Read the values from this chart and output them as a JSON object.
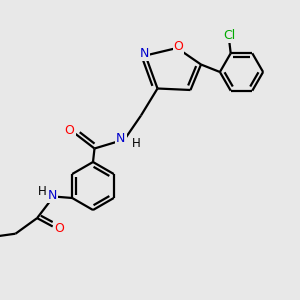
{
  "bg_color": "#e8e8e8",
  "atom_colors": {
    "N": "#0000cc",
    "O": "#ff0000",
    "Cl": "#00aa00"
  },
  "bond_color": "#000000",
  "bond_width": 1.6,
  "fig_width": 3.0,
  "fig_height": 3.0,
  "dpi": 100
}
